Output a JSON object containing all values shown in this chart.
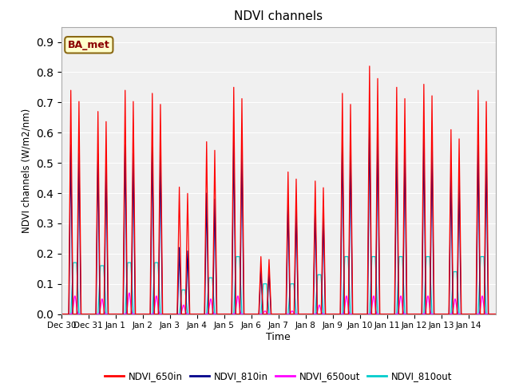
{
  "title": "NDVI channels",
  "ylabel": "NDVI channels (W/m2/nm)",
  "xlabel": "Time",
  "annotation_text": "BA_met",
  "annotation_color": "#8B0000",
  "annotation_bg": "#FFFFCC",
  "annotation_edge": "#8B6914",
  "ylim": [
    0.0,
    0.95
  ],
  "yticks": [
    0.0,
    0.1,
    0.2,
    0.3,
    0.4,
    0.5,
    0.6,
    0.7,
    0.8,
    0.9
  ],
  "bg_color": "#E8E8E8",
  "plot_bg": "#F0F0F0",
  "line_colors": {
    "NDVI_650in": "#FF0000",
    "NDVI_810in": "#00008B",
    "NDVI_650out": "#FF00FF",
    "NDVI_810out": "#00CCCC"
  },
  "xtick_labels": [
    "Dec 30",
    "Dec 31",
    "Jan 1",
    "Jan 2",
    "Jan 3",
    "Jan 4",
    "Jan 5",
    "Jan 6",
    "Jan 7",
    "Jan 8",
    "Jan 9",
    "Jan 10",
    "Jan 11",
    "Jan 12",
    "Jan 13",
    "Jan 14"
  ],
  "spike_peaks_650in": [
    0.74,
    0.67,
    0.74,
    0.73,
    0.42,
    0.57,
    0.75,
    0.19,
    0.47,
    0.44,
    0.73,
    0.82,
    0.75,
    0.76,
    0.61,
    0.74
  ],
  "spike_peaks_810in": [
    0.56,
    0.53,
    0.56,
    0.56,
    0.22,
    0.4,
    0.58,
    0.15,
    0.37,
    0.35,
    0.58,
    0.64,
    0.58,
    0.58,
    0.47,
    0.56
  ],
  "spike_peaks_650out": [
    0.06,
    0.05,
    0.07,
    0.06,
    0.03,
    0.05,
    0.06,
    0.01,
    0.01,
    0.03,
    0.06,
    0.06,
    0.06,
    0.06,
    0.05,
    0.06
  ],
  "spike_peaks_810out": [
    0.17,
    0.16,
    0.17,
    0.17,
    0.08,
    0.12,
    0.19,
    0.1,
    0.1,
    0.13,
    0.19,
    0.19,
    0.19,
    0.19,
    0.14,
    0.19
  ],
  "n_days": 16,
  "pts_per_day": 200
}
